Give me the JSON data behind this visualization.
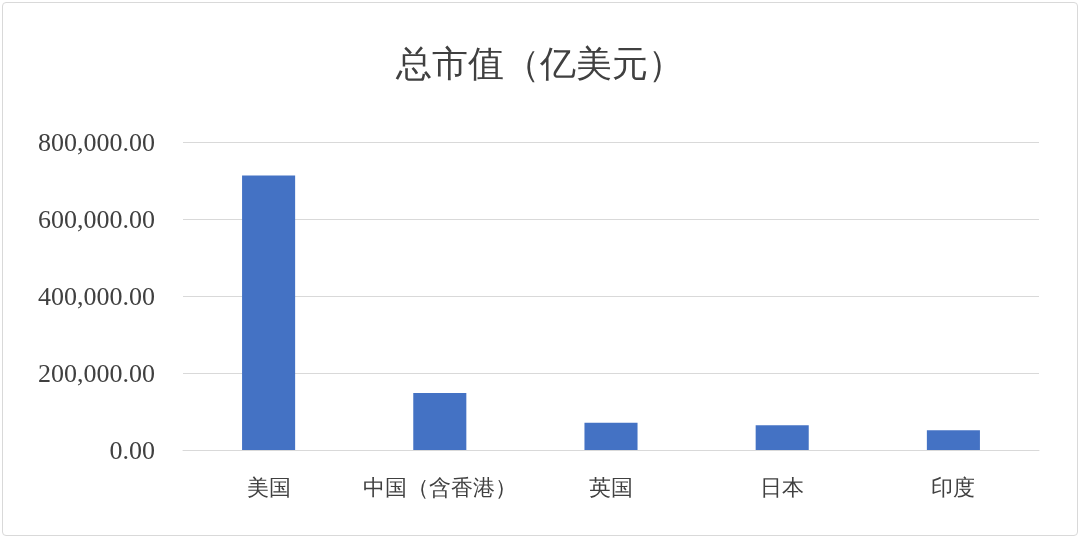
{
  "chart_data": {
    "type": "bar",
    "title": "总市值（亿美元）",
    "categories": [
      "美国",
      "中国（含香港）",
      "英国",
      "日本",
      "印度"
    ],
    "values": [
      713000,
      148000,
      71000,
      64000,
      51000
    ],
    "color": "#4472c4",
    "ylim": [
      0,
      800000
    ],
    "yticks": [
      {
        "value": 0,
        "label": "0.00"
      },
      {
        "value": 200000,
        "label": "200,000.00"
      },
      {
        "value": 400000,
        "label": "400,000.00"
      },
      {
        "value": 600000,
        "label": "600,000.00"
      },
      {
        "value": 800000,
        "label": "800,000.00"
      }
    ],
    "grid": "y"
  }
}
